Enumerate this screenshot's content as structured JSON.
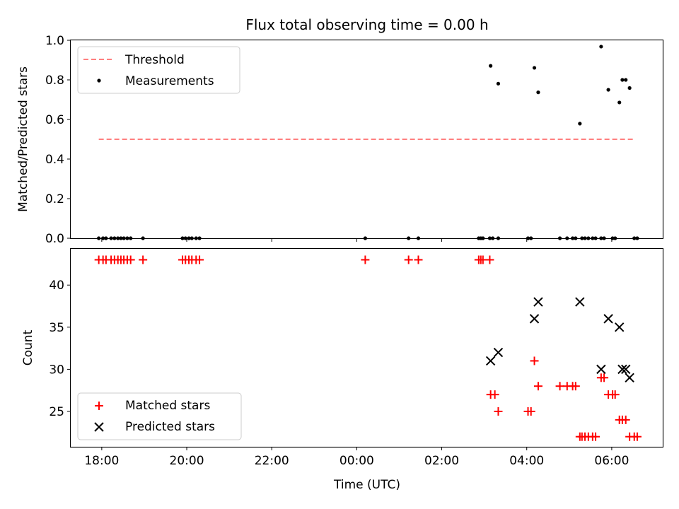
{
  "chart_data": [
    {
      "type": "scatter",
      "title": "Flux total observing time = 0.00 h",
      "xlabel": "",
      "ylabel": "Matched/Predicted stars",
      "ylim": [
        0.0,
        1.0
      ],
      "yticks": [
        "0.0",
        "0.2",
        "0.4",
        "0.6",
        "0.8",
        "1.0"
      ],
      "xlim_hours": [
        17.27,
        31.2
      ],
      "legend_position": "top-left",
      "grid": false,
      "threshold": {
        "name": "Threshold",
        "value": 0.5,
        "x_range": [
          17.93,
          30.53
        ],
        "color": "#ff7f7f"
      },
      "series": [
        {
          "name": "Measurements",
          "color": "#000000",
          "points": [
            [
              17.93,
              0
            ],
            [
              18.03,
              0
            ],
            [
              18.1,
              0
            ],
            [
              18.22,
              0
            ],
            [
              18.3,
              0
            ],
            [
              18.38,
              0
            ],
            [
              18.45,
              0
            ],
            [
              18.52,
              0
            ],
            [
              18.6,
              0
            ],
            [
              18.68,
              0
            ],
            [
              18.97,
              0
            ],
            [
              19.9,
              0
            ],
            [
              19.97,
              0
            ],
            [
              20.05,
              0
            ],
            [
              20.12,
              0
            ],
            [
              20.22,
              0
            ],
            [
              20.3,
              0
            ],
            [
              24.2,
              0
            ],
            [
              25.22,
              0
            ],
            [
              25.45,
              0
            ],
            [
              26.87,
              0
            ],
            [
              26.92,
              0
            ],
            [
              26.97,
              0
            ],
            [
              27.13,
              0
            ],
            [
              27.2,
              0
            ],
            [
              27.33,
              0
            ],
            [
              28.03,
              0
            ],
            [
              28.1,
              0
            ],
            [
              28.78,
              0
            ],
            [
              28.95,
              0
            ],
            [
              29.08,
              0
            ],
            [
              29.15,
              0
            ],
            [
              29.3,
              0
            ],
            [
              29.37,
              0
            ],
            [
              29.45,
              0
            ],
            [
              29.55,
              0
            ],
            [
              29.62,
              0
            ],
            [
              29.75,
              0
            ],
            [
              29.82,
              0
            ],
            [
              30.02,
              0
            ],
            [
              30.08,
              0
            ],
            [
              30.53,
              0
            ],
            [
              30.6,
              0
            ],
            [
              27.15,
              0.871
            ],
            [
              27.33,
              0.781
            ],
            [
              28.18,
              0.861
            ],
            [
              28.27,
              0.737
            ],
            [
              29.25,
              0.579
            ],
            [
              29.75,
              0.968
            ],
            [
              29.92,
              0.75
            ],
            [
              30.18,
              0.686
            ],
            [
              30.25,
              0.8
            ],
            [
              30.33,
              0.8
            ],
            [
              30.42,
              0.759
            ]
          ]
        }
      ]
    },
    {
      "type": "scatter",
      "title": "",
      "xlabel": "Time (UTC)",
      "ylabel": "Count",
      "ylim": [
        20.8,
        44.3
      ],
      "yticks": [
        "25",
        "30",
        "35",
        "40"
      ],
      "xlim_hours": [
        17.27,
        31.2
      ],
      "xticks": [
        "18:00",
        "20:00",
        "22:00",
        "00:00",
        "02:00",
        "04:00",
        "06:00"
      ],
      "legend_position": "bottom-left",
      "grid": false,
      "series": [
        {
          "name": "Matched stars",
          "marker": "plus",
          "color": "#ff0000",
          "points": [
            [
              17.93,
              43
            ],
            [
              18.03,
              43
            ],
            [
              18.1,
              43
            ],
            [
              18.22,
              43
            ],
            [
              18.3,
              43
            ],
            [
              18.38,
              43
            ],
            [
              18.45,
              43
            ],
            [
              18.52,
              43
            ],
            [
              18.6,
              43
            ],
            [
              18.68,
              43
            ],
            [
              18.97,
              43
            ],
            [
              19.9,
              43
            ],
            [
              19.97,
              43
            ],
            [
              20.05,
              43
            ],
            [
              20.12,
              43
            ],
            [
              20.22,
              43
            ],
            [
              20.3,
              43
            ],
            [
              24.2,
              43
            ],
            [
              25.22,
              43
            ],
            [
              25.45,
              43
            ],
            [
              26.87,
              43
            ],
            [
              26.92,
              43
            ],
            [
              26.97,
              43
            ],
            [
              27.13,
              43
            ],
            [
              27.15,
              27
            ],
            [
              27.25,
              27
            ],
            [
              27.33,
              25
            ],
            [
              28.03,
              25
            ],
            [
              28.1,
              25
            ],
            [
              28.18,
              31
            ],
            [
              28.27,
              28
            ],
            [
              28.78,
              28
            ],
            [
              28.95,
              28
            ],
            [
              29.08,
              28
            ],
            [
              29.15,
              28
            ],
            [
              29.25,
              22
            ],
            [
              29.3,
              22
            ],
            [
              29.37,
              22
            ],
            [
              29.45,
              22
            ],
            [
              29.55,
              22
            ],
            [
              29.62,
              22
            ],
            [
              29.75,
              29
            ],
            [
              29.82,
              29
            ],
            [
              29.92,
              27
            ],
            [
              30.02,
              27
            ],
            [
              30.08,
              27
            ],
            [
              30.18,
              24
            ],
            [
              30.25,
              24
            ],
            [
              30.33,
              24
            ],
            [
              30.42,
              22
            ],
            [
              30.53,
              22
            ],
            [
              30.6,
              22
            ]
          ]
        },
        {
          "name": "Predicted stars",
          "marker": "x",
          "color": "#000000",
          "points": [
            [
              27.15,
              31
            ],
            [
              27.33,
              32
            ],
            [
              28.18,
              36
            ],
            [
              28.27,
              38
            ],
            [
              29.25,
              38
            ],
            [
              29.75,
              30
            ],
            [
              29.92,
              36
            ],
            [
              30.18,
              35
            ],
            [
              30.25,
              30
            ],
            [
              30.33,
              30
            ],
            [
              30.42,
              29
            ]
          ]
        }
      ]
    }
  ]
}
